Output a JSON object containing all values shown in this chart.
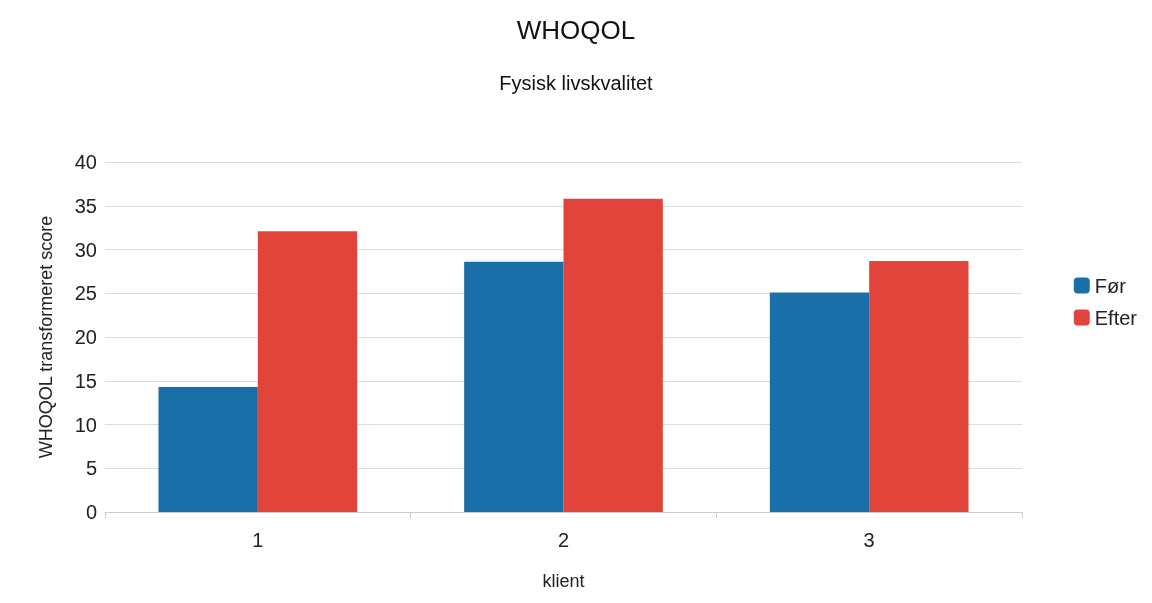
{
  "chart_data": {
    "type": "bar",
    "title": "WHOQOL",
    "subtitle": "Fysisk livskvalitet",
    "xlabel": "klient",
    "ylabel": "WHOQOL transformeret score",
    "categories": [
      "1",
      "2",
      "3"
    ],
    "series": [
      {
        "name": "Før",
        "color": "#1a6fa8",
        "values": [
          14.3,
          28.6,
          25.1
        ]
      },
      {
        "name": "Efter",
        "color": "#e0443a",
        "values": [
          32.1,
          35.8,
          28.7
        ]
      }
    ],
    "ylim": [
      0,
      40
    ],
    "yticks": [
      0,
      5,
      10,
      15,
      20,
      25,
      30,
      35,
      40
    ],
    "grid": "y",
    "legend": "right"
  }
}
